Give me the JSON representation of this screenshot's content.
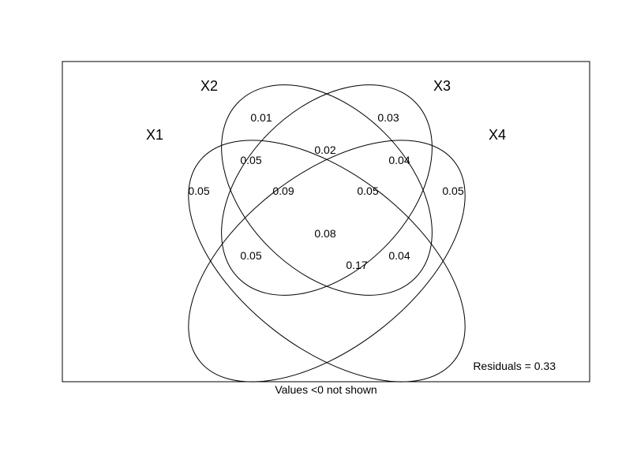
{
  "diagram": {
    "sets": [
      "X1",
      "X2",
      "X3",
      "X4"
    ],
    "region_values": [
      {
        "key": "x2_only",
        "value": "0.01"
      },
      {
        "key": "x3_only",
        "value": "0.03"
      },
      {
        "key": "x2_x3",
        "value": "0.02"
      },
      {
        "key": "x1_x2",
        "value": "0.05"
      },
      {
        "key": "x3_x4",
        "value": "0.04"
      },
      {
        "key": "x1_only",
        "value": "0.05"
      },
      {
        "key": "x1_x2_x3",
        "value": "0.09"
      },
      {
        "key": "x2_x3_x4",
        "value": "0.05"
      },
      {
        "key": "x4_only",
        "value": "0.05"
      },
      {
        "key": "x1_x2_x3_x4",
        "value": "0.08"
      },
      {
        "key": "x1_x3",
        "value": "0.05"
      },
      {
        "key": "x2_x4",
        "value": "0.04"
      },
      {
        "key": "x1_x3_x4",
        "value": "0.17"
      }
    ],
    "residuals": "Residuals = 0.33",
    "footnote": "Values <0 not shown"
  }
}
